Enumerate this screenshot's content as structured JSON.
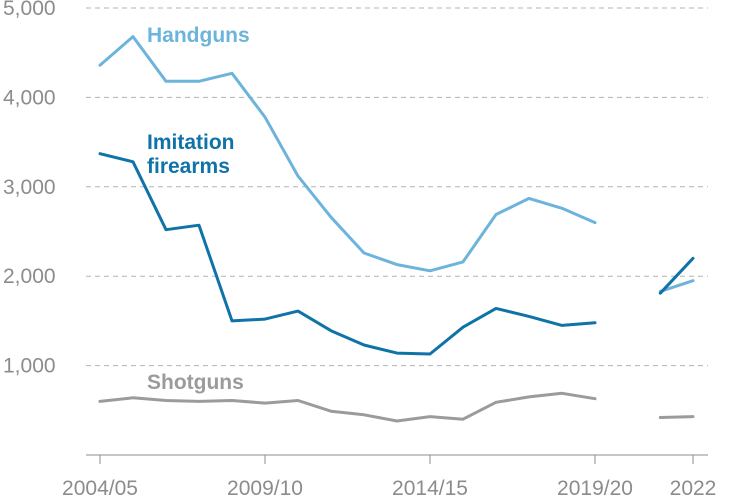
{
  "chart_data": {
    "type": "line",
    "title": "",
    "xlabel": "",
    "ylabel": "",
    "ylim": [
      0,
      5000
    ],
    "y_ticks": [
      1000,
      2000,
      3000,
      4000,
      5000
    ],
    "y_tick_labels": [
      "1,000",
      "2,000",
      "3,000",
      "4,000",
      "5,000"
    ],
    "grid": "horizontal-dashed",
    "x_tick_labels": [
      "2004/05",
      "2009/10",
      "2014/15",
      "2019/20",
      "2022"
    ],
    "x_tick_positions": [
      0,
      5,
      10,
      15,
      18
    ],
    "x": [
      0,
      1,
      2,
      3,
      4,
      5,
      6,
      7,
      8,
      9,
      10,
      11,
      12,
      13,
      14,
      15,
      17,
      18
    ],
    "x_note": "Break between 2019/20 and 2022 (two separate points in 2021-2022 segment)",
    "series": [
      {
        "name": "Handguns",
        "color": "#6cb4dc",
        "segments": [
          [
            [
              0,
              4360
            ],
            [
              1,
              4680
            ],
            [
              2,
              4180
            ],
            [
              3,
              4180
            ],
            [
              4,
              4270
            ],
            [
              5,
              3780
            ],
            [
              6,
              3120
            ],
            [
              7,
              2660
            ],
            [
              8,
              2260
            ],
            [
              9,
              2130
            ],
            [
              10,
              2060
            ],
            [
              11,
              2160
            ],
            [
              12,
              2690
            ],
            [
              13,
              2870
            ],
            [
              14,
              2760
            ],
            [
              15,
              2600
            ]
          ],
          [
            [
              17,
              1830
            ],
            [
              18,
              1950
            ]
          ]
        ]
      },
      {
        "name": "Imitation firearms",
        "name_lines": [
          "Imitation",
          "firearms"
        ],
        "color": "#0f73a8",
        "segments": [
          [
            [
              0,
              3370
            ],
            [
              1,
              3280
            ],
            [
              2,
              2520
            ],
            [
              3,
              2570
            ],
            [
              4,
              1500
            ],
            [
              5,
              1520
            ],
            [
              6,
              1610
            ],
            [
              7,
              1390
            ],
            [
              8,
              1230
            ],
            [
              9,
              1140
            ],
            [
              10,
              1130
            ],
            [
              11,
              1430
            ],
            [
              12,
              1640
            ],
            [
              13,
              1550
            ],
            [
              14,
              1450
            ],
            [
              15,
              1480
            ]
          ],
          [
            [
              17,
              1810
            ],
            [
              18,
              2200
            ]
          ]
        ]
      },
      {
        "name": "Shotguns",
        "color": "#9b9b9b",
        "segments": [
          [
            [
              0,
              600
            ],
            [
              1,
              640
            ],
            [
              2,
              610
            ],
            [
              3,
              600
            ],
            [
              4,
              610
            ],
            [
              5,
              580
            ],
            [
              6,
              610
            ],
            [
              7,
              490
            ],
            [
              8,
              450
            ],
            [
              9,
              380
            ],
            [
              10,
              430
            ],
            [
              11,
              400
            ],
            [
              12,
              590
            ],
            [
              13,
              650
            ],
            [
              14,
              690
            ],
            [
              15,
              630
            ]
          ],
          [
            [
              17,
              420
            ],
            [
              18,
              430
            ]
          ]
        ]
      }
    ]
  }
}
